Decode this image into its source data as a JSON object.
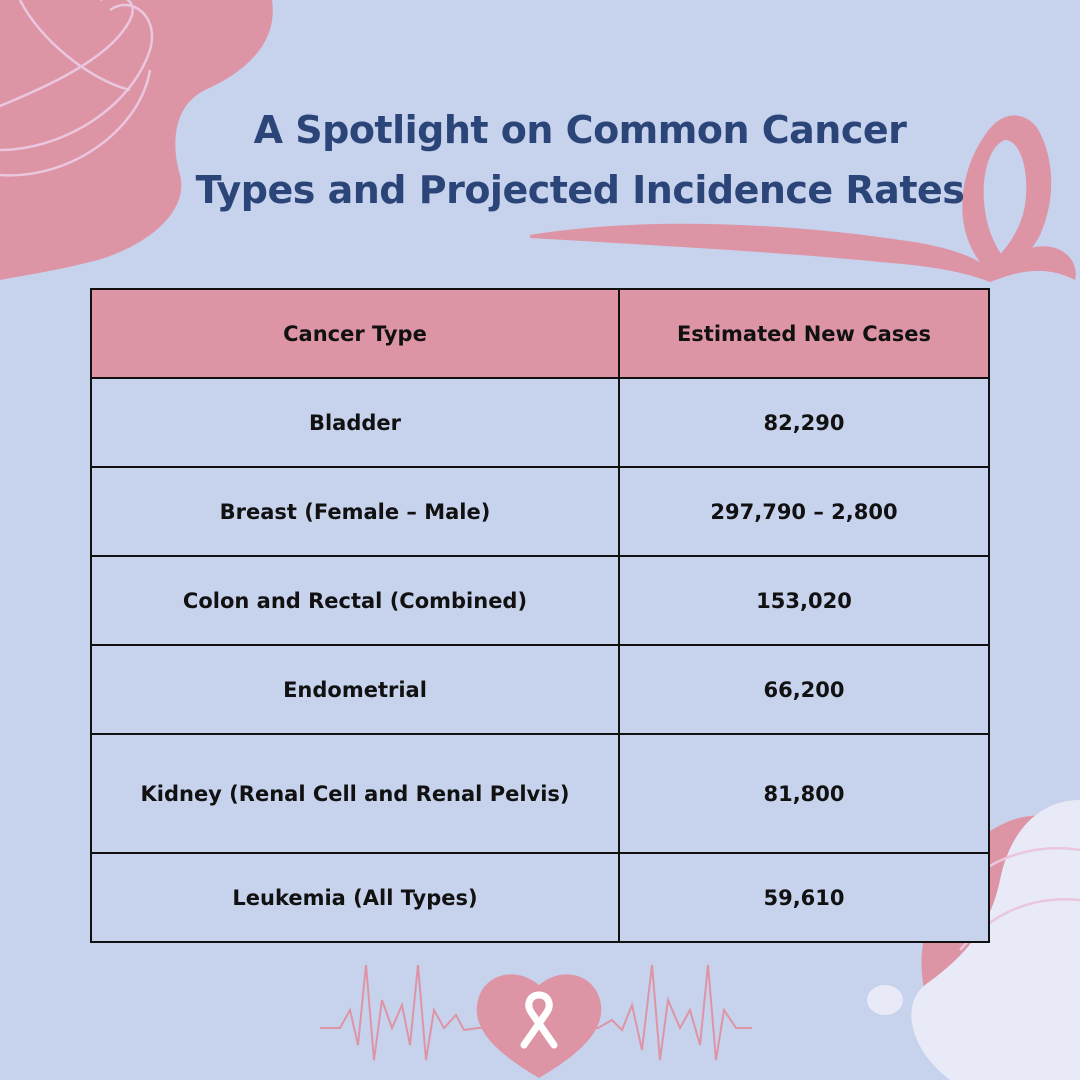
{
  "title": {
    "line1": "A Spotlight on Common Cancer",
    "line2": "Types and Projected Incidence Rates"
  },
  "table": {
    "headers": [
      "Cancer Type",
      "Estimated New Cases"
    ],
    "rows": [
      {
        "type": "Bladder",
        "cases": "82,290"
      },
      {
        "type": "Breast (Female – Male)",
        "cases": "297,790 – 2,800"
      },
      {
        "type": "Colon and Rectal (Combined)",
        "cases": "153,020"
      },
      {
        "type": "Endometrial",
        "cases": "66,200"
      },
      {
        "type": "Kidney (Renal Cell and Renal Pelvis)",
        "cases": "81,800"
      },
      {
        "type": "Leukemia (All Types)",
        "cases": "59,610"
      }
    ]
  },
  "colors": {
    "background": "#c7d2ed",
    "accent_pink": "#dd95a6",
    "title_navy": "#2c4579"
  },
  "icons": [
    "awareness-ribbon-icon",
    "heart-ribbon-icon",
    "heartbeat-line-icon"
  ]
}
